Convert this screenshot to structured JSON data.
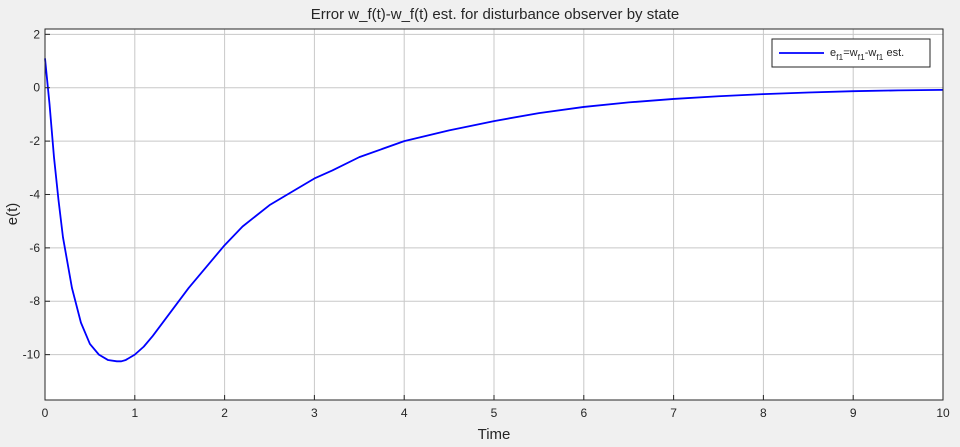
{
  "figure": {
    "title": "Error w_f(t)-w_f(t) est. for disturbance observer by state",
    "background_color": "#f0f0f0",
    "axes_color": "#ffffff",
    "grid_color": "#c8c8c8",
    "line_color": "#0000ff"
  },
  "legend": {
    "base_e": "e",
    "sub_f1_a": "f1",
    "eq_w": "=w",
    "sub_f1_b": "f1",
    "minus_w": "-w",
    "sub_f1_c": "f1",
    "est": " est."
  },
  "chart_data": {
    "type": "line",
    "title": "Error w_f(t)-w_f(t) est. for disturbance observer by state",
    "xlabel": "Time",
    "ylabel": "e(t)",
    "xlim": [
      0,
      10
    ],
    "ylim": [
      -11.7,
      2.2
    ],
    "xticks": [
      0,
      1,
      2,
      3,
      4,
      5,
      6,
      7,
      8,
      9,
      10
    ],
    "yticks": [
      2,
      0,
      -2,
      -4,
      -6,
      -8,
      -10
    ],
    "grid": true,
    "legend_position": "top-right",
    "series": [
      {
        "name": "e_f1 = w_f1 - w_f1 est.",
        "color": "#0000ff",
        "x": [
          0,
          0.05,
          0.1,
          0.15,
          0.2,
          0.3,
          0.4,
          0.5,
          0.6,
          0.7,
          0.8,
          0.85,
          0.9,
          1.0,
          1.1,
          1.2,
          1.4,
          1.6,
          1.8,
          2.0,
          2.2,
          2.5,
          2.8,
          3.0,
          3.2,
          3.5,
          4.0,
          4.5,
          5.0,
          5.5,
          6.0,
          6.5,
          7.0,
          7.5,
          8.0,
          8.5,
          9.0,
          9.5,
          10.0
        ],
        "y": [
          1.1,
          -0.6,
          -2.6,
          -4.2,
          -5.6,
          -7.5,
          -8.8,
          -9.6,
          -10.0,
          -10.2,
          -10.25,
          -10.25,
          -10.2,
          -10.0,
          -9.7,
          -9.3,
          -8.4,
          -7.5,
          -6.7,
          -5.9,
          -5.2,
          -4.4,
          -3.8,
          -3.4,
          -3.1,
          -2.6,
          -2.0,
          -1.6,
          -1.25,
          -0.95,
          -0.72,
          -0.55,
          -0.42,
          -0.32,
          -0.24,
          -0.18,
          -0.13,
          -0.1,
          -0.08
        ]
      }
    ]
  }
}
